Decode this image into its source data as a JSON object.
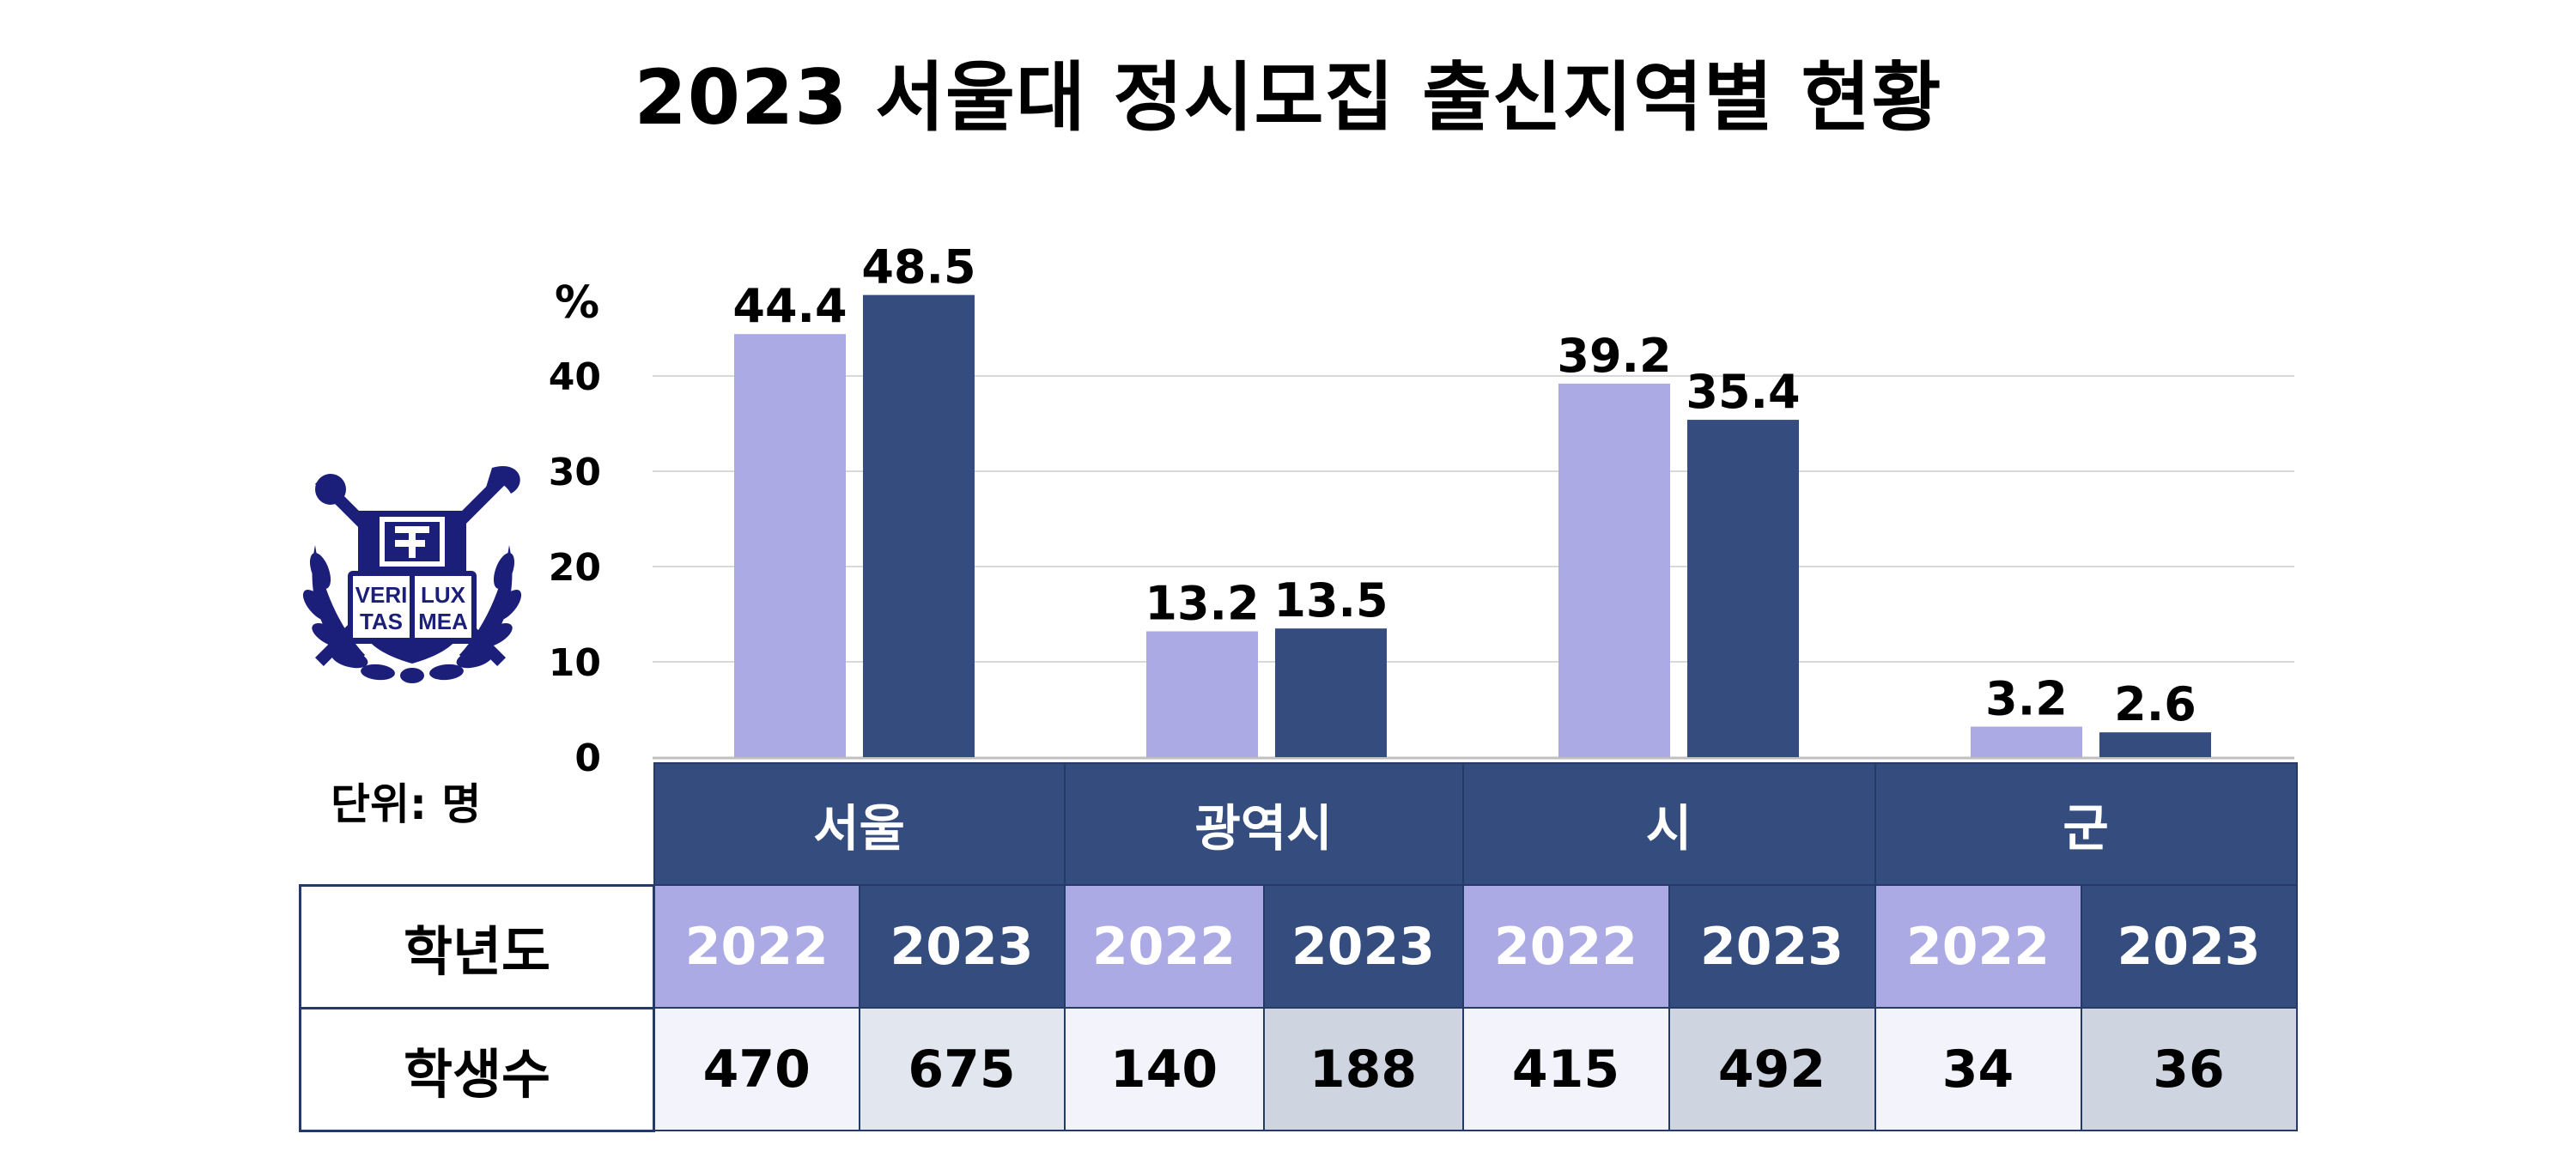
{
  "title": "2023 서울대 정시모집 출신지역별 현황",
  "unit_label": "단위: 명",
  "logo_text": [
    "VERI",
    "LUX",
    "TAS",
    "MEA"
  ],
  "colors": {
    "y2022": "#abaae4",
    "y2023": "#344d7e",
    "header": "#344d7e",
    "grid": "#d9d9d9"
  },
  "chart_data": {
    "type": "bar",
    "title": "2023 서울대 정시모집 출신지역별 현황",
    "ylabel": "%",
    "ylim": [
      0,
      50
    ],
    "yticks": [
      0,
      10,
      20,
      30,
      40
    ],
    "grid": true,
    "categories": [
      "서울",
      "광역시",
      "시",
      "군"
    ],
    "series": [
      {
        "key": "2022",
        "values": [
          44.4,
          13.2,
          39.2,
          3.2
        ]
      },
      {
        "key": "2023",
        "values": [
          48.5,
          13.5,
          35.4,
          2.6
        ]
      }
    ]
  },
  "table": {
    "categories": [
      "서울",
      "광역시",
      "시",
      "군"
    ],
    "year_row_label": "학년도",
    "count_row_label": "학생수",
    "years": [
      "2022",
      "2023",
      "2022",
      "2023",
      "2022",
      "2023",
      "2022",
      "2023"
    ],
    "counts": [
      "470",
      "675",
      "140",
      "188",
      "415",
      "492",
      "34",
      "36"
    ]
  }
}
